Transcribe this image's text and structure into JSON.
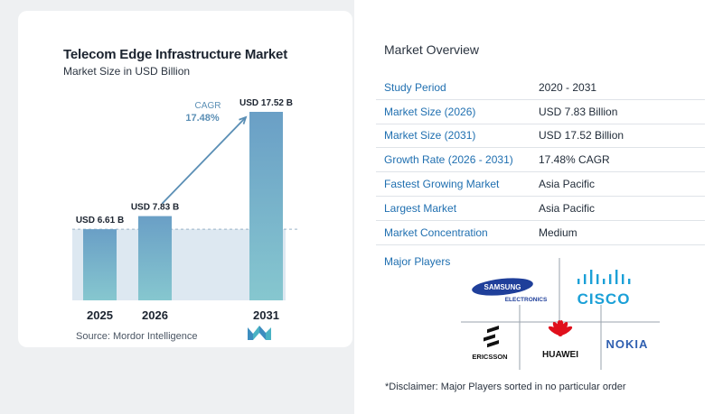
{
  "chart_data": {
    "type": "bar",
    "title": "Telecom Edge Infrastructure Market",
    "subtitle": "Market Size in USD Billion",
    "categories": [
      "2025",
      "2026",
      "2031"
    ],
    "values": [
      6.61,
      7.83,
      17.52
    ],
    "data_labels": [
      "USD 6.61 B",
      "USD 7.83 B",
      "USD 17.52 B"
    ],
    "cagr_label": "CAGR",
    "cagr_value": "17.48%",
    "ylim": [
      0,
      17.52
    ],
    "grid": false,
    "colors": {
      "bar_top": "#6ba3c7",
      "bar_bottom": "#82c3cf",
      "fill": "#dde8f1",
      "arrow": "#5b8fb5"
    }
  },
  "source_text": "Source:  Mordor Intelligence",
  "overview": {
    "title": "Market Overview",
    "rows": [
      {
        "label": "Study Period",
        "value": "2020 - 2031"
      },
      {
        "label": "Market Size (2026)",
        "value": "USD 7.83 Billion"
      },
      {
        "label": "Market Size (2031)",
        "value": "USD 17.52 Billion"
      },
      {
        "label": "Growth Rate (2026 - 2031)",
        "value": "17.48% CAGR"
      },
      {
        "label": "Fastest Growing Market",
        "value": "Asia Pacific"
      },
      {
        "label": "Largest Market",
        "value": "Asia Pacific"
      },
      {
        "label": "Market Concentration",
        "value": "Medium"
      }
    ]
  },
  "players": {
    "title": "Major Players",
    "samsung_top": "SAMSUNG",
    "samsung_bottom": "ELECTRONICS",
    "cisco": "CISCO",
    "ericsson": "ERICSSON",
    "huawei": "HUAWEI",
    "nokia": "NOKIA"
  },
  "disclaimer": "*Disclaimer: Major Players sorted in no particular order"
}
